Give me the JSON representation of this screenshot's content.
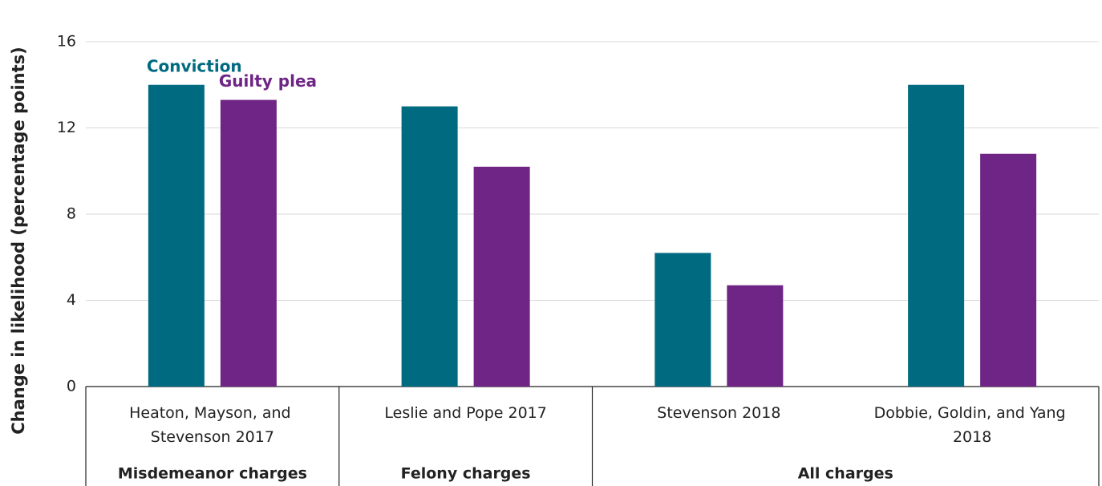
{
  "chart_data": {
    "type": "bar",
    "y_label": "Change in likelihood  (percentage points)",
    "categories": [
      "Heaton, Mayson, and Stevenson 2017",
      "Leslie and Pope 2017",
      "Stevenson 2018",
      "Dobbie, Goldin, and Yang 2018"
    ],
    "category_groups": [
      "Misdemeanor charges",
      "Felony charges",
      "All charges",
      "All charges"
    ],
    "series": [
      {
        "name": "Conviction",
        "color": "#006a80",
        "values": [
          14,
          13,
          6.2,
          14
        ]
      },
      {
        "name": "Guilty plea",
        "color": "#6e2585",
        "values": [
          13.3,
          10.2,
          4.7,
          10.8
        ]
      }
    ],
    "ylim": [
      0,
      16
    ],
    "yticks": [
      0,
      4,
      8,
      12,
      16
    ],
    "grid": true
  }
}
